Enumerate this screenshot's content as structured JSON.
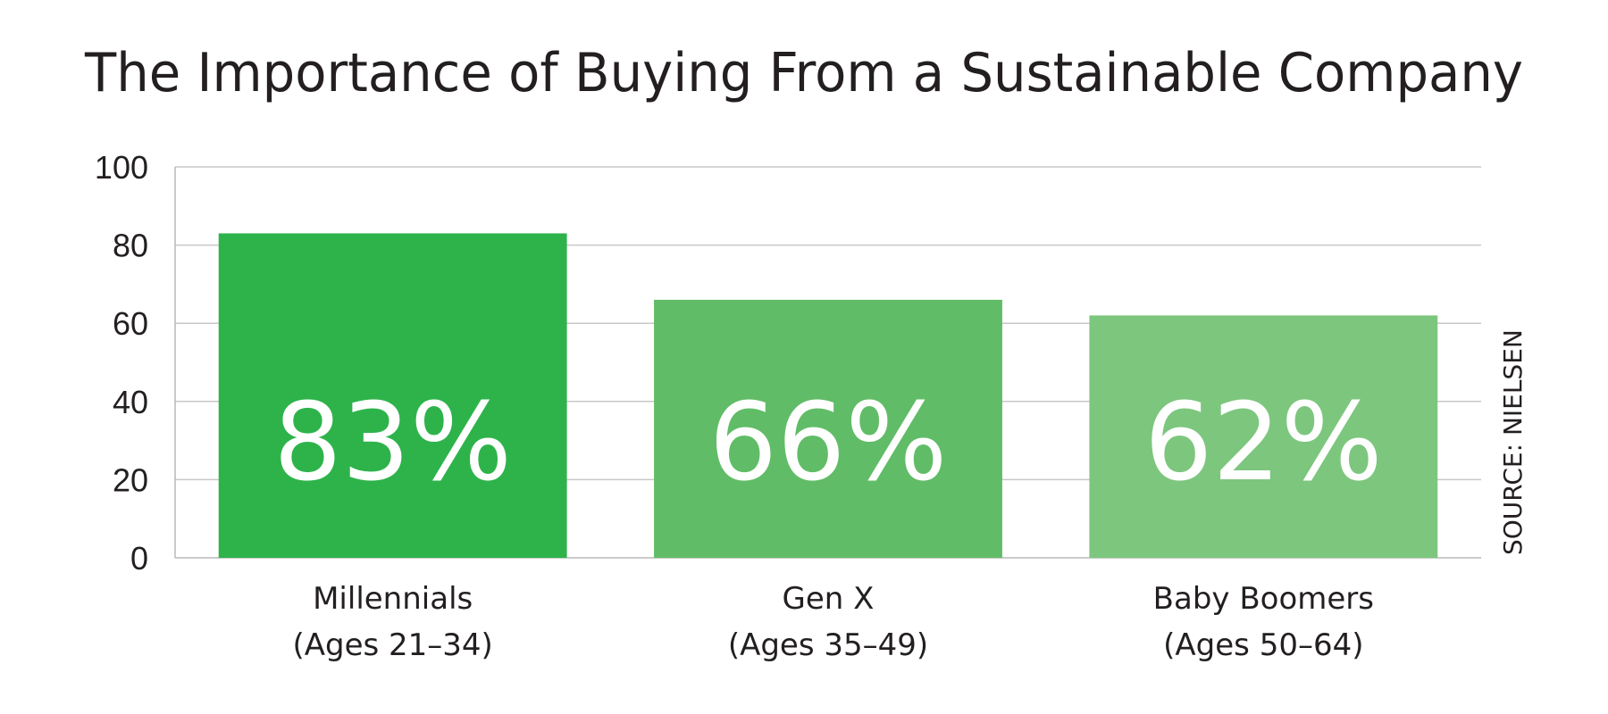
{
  "chart_data": {
    "type": "bar",
    "title": "The Importance of Buying From a Sustainable Company",
    "categories": [
      "Millennials",
      "Gen X",
      "Baby Boomers"
    ],
    "category_subtitles": [
      "(Ages 21–34)",
      "(Ages 35–49)",
      "(Ages 50–64)"
    ],
    "values": [
      83,
      66,
      62
    ],
    "data_labels": [
      "83%",
      "66%",
      "62%"
    ],
    "bar_colors": [
      "#2eb34b",
      "#61bc67",
      "#7dc67e"
    ],
    "ylim": [
      0,
      100
    ],
    "yticks": [
      "0",
      "20",
      "40",
      "60",
      "80",
      "100"
    ],
    "ytick_values": [
      0,
      20,
      40,
      60,
      80,
      100
    ],
    "grid": true,
    "xlabel": "",
    "ylabel": "",
    "source": "SOURCE: NIELSEN"
  }
}
